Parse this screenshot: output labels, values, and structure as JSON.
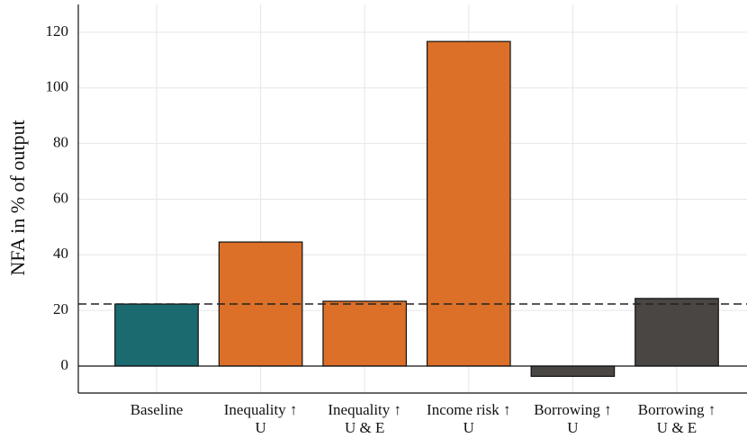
{
  "chart_data": {
    "type": "bar",
    "y_label": "NFA in % of output",
    "categories": [
      [
        "Baseline"
      ],
      [
        "Inequality ↑",
        "U"
      ],
      [
        "Inequality ↑",
        "U & E"
      ],
      [
        "Income risk ↑",
        "U"
      ],
      [
        "Borrowing ↑",
        "U"
      ],
      [
        "Borrowing ↑",
        "U & E"
      ]
    ],
    "values": [
      22.3,
      44.6,
      23.3,
      116.7,
      -3.7,
      24.3
    ],
    "colors": [
      "#1b6a70",
      "#dc7029",
      "#dc7029",
      "#dc7029",
      "#4a4644",
      "#4a4644"
    ],
    "reference_line": 22.3,
    "ylim": [
      -9.7,
      130
    ],
    "yticks": [
      0,
      20,
      40,
      60,
      80,
      100,
      120
    ],
    "grid": true
  }
}
